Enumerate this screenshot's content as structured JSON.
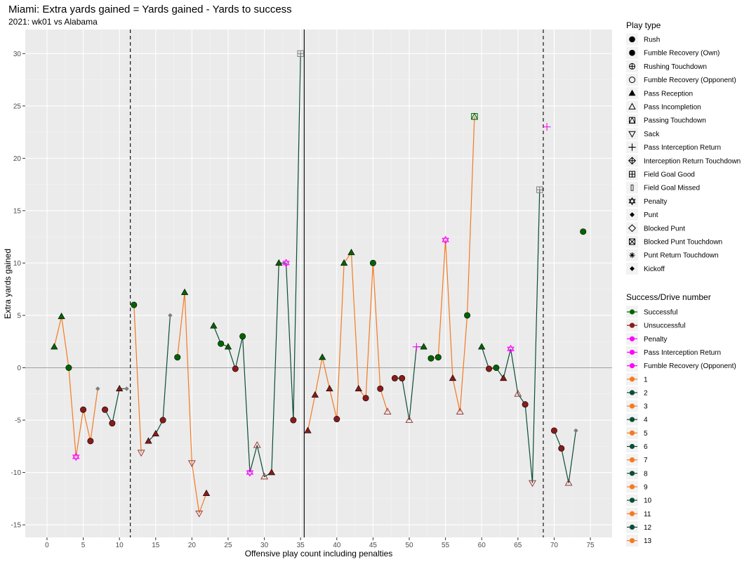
{
  "chart_data": {
    "type": "line",
    "title": "Miami: Extra yards gained = Yards gained - Yards to success",
    "subtitle": "2021: wk01 vs Alabama",
    "xlabel": "Offensive play count including penalties",
    "ylabel": "Extra yards gained",
    "xlim": [
      -3,
      78
    ],
    "ylim": [
      -16.2,
      32.3
    ],
    "xticks": [
      0,
      5,
      10,
      15,
      20,
      25,
      30,
      35,
      40,
      45,
      50,
      55,
      60,
      65,
      70,
      75
    ],
    "yticks": [
      -15,
      -10,
      -5,
      0,
      5,
      10,
      15,
      20,
      25,
      30
    ],
    "grid": true,
    "legend_position": "right",
    "vlines_dashed": [
      11.5,
      68.5
    ],
    "vlines_solid": [
      35.5
    ],
    "hline": 0,
    "colors": {
      "Successful": "#006400",
      "Unsuccessful": "#8b1a1a",
      "Penalty": "#ff00ff",
      "odd_drive": "#f47a20",
      "even_drive": "#0b4d36",
      "other": "#7f7f7f"
    },
    "legend_shapes": {
      "title": "Play type",
      "items": [
        {
          "label": "Rush",
          "shape": "circle"
        },
        {
          "label": "Fumble Recovery (Own)",
          "shape": "circle"
        },
        {
          "label": "Rushing Touchdown",
          "shape": "circle-plus"
        },
        {
          "label": "Fumble Recovery (Opponent)",
          "shape": "circle-open"
        },
        {
          "label": "Pass Reception",
          "shape": "triangle"
        },
        {
          "label": "Pass Incompletion",
          "shape": "triangle-open"
        },
        {
          "label": "Passing Touchdown",
          "shape": "square-triangle"
        },
        {
          "label": "Sack",
          "shape": "triangle-down-open"
        },
        {
          "label": "Pass Interception Return",
          "shape": "plus"
        },
        {
          "label": "Interception Return Touchdown",
          "shape": "diamond-plus"
        },
        {
          "label": "Field Goal Good",
          "shape": "square-plus"
        },
        {
          "label": "Field Goal Missed",
          "shape": "bar"
        },
        {
          "label": "Penalty",
          "shape": "star-david"
        },
        {
          "label": "Punt",
          "shape": "diamond"
        },
        {
          "label": "Blocked Punt",
          "shape": "diamond-open"
        },
        {
          "label": "Blocked Punt Touchdown",
          "shape": "square-x"
        },
        {
          "label": "Punt Return Touchdown",
          "shape": "asterisk"
        },
        {
          "label": "Kickoff",
          "shape": "diamond"
        }
      ]
    },
    "legend_colors": {
      "title": "Success/Drive number",
      "items": [
        {
          "label": "Successful",
          "color": "#006400"
        },
        {
          "label": "Unsuccessful",
          "color": "#8b1a1a"
        },
        {
          "label": "Penalty",
          "color": "#ff00ff"
        },
        {
          "label": "Pass Interception Return",
          "color": "#ff00ff"
        },
        {
          "label": "Fumble Recovery (Opponent)",
          "color": "#ff00ff"
        },
        {
          "label": "1",
          "color": "#f47a20"
        },
        {
          "label": "2",
          "color": "#0b4d36"
        },
        {
          "label": "3",
          "color": "#f47a20"
        },
        {
          "label": "4",
          "color": "#0b4d36"
        },
        {
          "label": "5",
          "color": "#f47a20"
        },
        {
          "label": "6",
          "color": "#0b4d36"
        },
        {
          "label": "7",
          "color": "#f47a20"
        },
        {
          "label": "8",
          "color": "#0b4d36"
        },
        {
          "label": "9",
          "color": "#f47a20"
        },
        {
          "label": "10",
          "color": "#0b4d36"
        },
        {
          "label": "11",
          "color": "#f47a20"
        },
        {
          "label": "12",
          "color": "#0b4d36"
        },
        {
          "label": "13",
          "color": "#f47a20"
        }
      ]
    },
    "drives": [
      {
        "drive": 1,
        "points": [
          {
            "x": 1,
            "y": 2,
            "shape": "triangle",
            "result": "Successful"
          },
          {
            "x": 2,
            "y": 4.9,
            "shape": "triangle",
            "result": "Successful"
          },
          {
            "x": 3,
            "y": 0,
            "shape": "circle",
            "result": "Successful"
          },
          {
            "x": 4,
            "y": -8.5,
            "shape": "star-david",
            "result": "Penalty"
          },
          {
            "x": 5,
            "y": -4,
            "shape": "circle",
            "result": "Unsuccessful"
          },
          {
            "x": 6,
            "y": -7,
            "shape": "circle",
            "result": "Unsuccessful"
          },
          {
            "x": 7,
            "y": -2,
            "shape": "diamond",
            "result": "Other"
          }
        ]
      },
      {
        "drive": 2,
        "points": [
          {
            "x": 8,
            "y": -4,
            "shape": "circle",
            "result": "Unsuccessful"
          },
          {
            "x": 9,
            "y": -5.3,
            "shape": "circle",
            "result": "Unsuccessful"
          },
          {
            "x": 10,
            "y": -2,
            "shape": "triangle",
            "result": "Unsuccessful"
          },
          {
            "x": 11,
            "y": -2,
            "shape": "diamond",
            "result": "Other"
          }
        ]
      },
      {
        "drive": 3,
        "points": [
          {
            "x": 12,
            "y": 6,
            "shape": "circle",
            "result": "Successful"
          },
          {
            "x": 13,
            "y": -8.1,
            "shape": "triangle-down-open",
            "result": "Unsuccessful"
          }
        ]
      },
      {
        "drive": 4,
        "points": [
          {
            "x": 14,
            "y": -7,
            "shape": "triangle",
            "result": "Unsuccessful"
          },
          {
            "x": 15,
            "y": -6.3,
            "shape": "triangle",
            "result": "Unsuccessful"
          },
          {
            "x": 16,
            "y": -5,
            "shape": "circle",
            "result": "Unsuccessful"
          },
          {
            "x": 17,
            "y": 5,
            "shape": "diamond",
            "result": "Other"
          }
        ]
      },
      {
        "drive": 5,
        "points": [
          {
            "x": 18,
            "y": 1,
            "shape": "circle",
            "result": "Successful"
          },
          {
            "x": 19,
            "y": 7.2,
            "shape": "triangle",
            "result": "Successful"
          },
          {
            "x": 20,
            "y": -9.1,
            "shape": "triangle-down-open",
            "result": "Unsuccessful"
          },
          {
            "x": 21,
            "y": -13.9,
            "shape": "triangle-down-open",
            "result": "Unsuccessful"
          },
          {
            "x": 22,
            "y": -12,
            "shape": "triangle",
            "result": "Unsuccessful"
          }
        ]
      },
      {
        "drive": 6,
        "points": [
          {
            "x": 23,
            "y": 4,
            "shape": "triangle",
            "result": "Successful"
          },
          {
            "x": 24,
            "y": 2.3,
            "shape": "circle",
            "result": "Successful"
          },
          {
            "x": 25,
            "y": 2,
            "shape": "triangle",
            "result": "Successful"
          },
          {
            "x": 26,
            "y": -0.1,
            "shape": "circle",
            "result": "Unsuccessful"
          },
          {
            "x": 27,
            "y": 3,
            "shape": "circle",
            "result": "Successful"
          },
          {
            "x": 28,
            "y": -10,
            "shape": "star-david",
            "result": "Penalty"
          },
          {
            "x": 29,
            "y": -7.4,
            "shape": "triangle-open",
            "result": "Unsuccessful"
          },
          {
            "x": 30,
            "y": -10.4,
            "shape": "triangle-open",
            "result": "Unsuccessful"
          },
          {
            "x": 31,
            "y": -10,
            "shape": "triangle",
            "result": "Unsuccessful"
          },
          {
            "x": 32,
            "y": 10,
            "shape": "triangle",
            "result": "Successful"
          },
          {
            "x": 33,
            "y": 10,
            "shape": "star-david",
            "result": "Penalty"
          },
          {
            "x": 34,
            "y": -5,
            "shape": "circle",
            "result": "Unsuccessful"
          },
          {
            "x": 35,
            "y": 30,
            "shape": "square-plus",
            "result": "Other"
          }
        ]
      },
      {
        "drive": 7,
        "points": [
          {
            "x": 36,
            "y": -6,
            "shape": "triangle",
            "result": "Unsuccessful"
          },
          {
            "x": 37,
            "y": -2.6,
            "shape": "triangle",
            "result": "Unsuccessful"
          },
          {
            "x": 38,
            "y": 1,
            "shape": "triangle",
            "result": "Successful"
          },
          {
            "x": 39,
            "y": -2,
            "shape": "triangle",
            "result": "Unsuccessful"
          },
          {
            "x": 40,
            "y": -4.9,
            "shape": "circle",
            "result": "Unsuccessful"
          },
          {
            "x": 41,
            "y": 10,
            "shape": "triangle",
            "result": "Successful"
          },
          {
            "x": 42,
            "y": 11,
            "shape": "triangle",
            "result": "Successful"
          },
          {
            "x": 43,
            "y": -2,
            "shape": "triangle",
            "result": "Unsuccessful"
          },
          {
            "x": 44,
            "y": -2.9,
            "shape": "circle",
            "result": "Unsuccessful"
          },
          {
            "x": 45,
            "y": 10,
            "shape": "circle",
            "result": "Successful"
          },
          {
            "x": 46,
            "y": -2,
            "shape": "circle",
            "result": "Unsuccessful"
          },
          {
            "x": 47,
            "y": -4.2,
            "shape": "triangle-open",
            "result": "Unsuccessful"
          }
        ]
      },
      {
        "drive": 8,
        "points": [
          {
            "x": 48,
            "y": -1,
            "shape": "circle",
            "result": "Unsuccessful"
          },
          {
            "x": 49,
            "y": -1,
            "shape": "circle",
            "result": "Unsuccessful"
          },
          {
            "x": 50,
            "y": -5,
            "shape": "triangle-open",
            "result": "Unsuccessful"
          },
          {
            "x": 51,
            "y": 2,
            "shape": "plus",
            "result": "Penalty"
          },
          {
            "x": 52,
            "y": 2,
            "shape": "triangle",
            "result": "Successful"
          }
        ]
      },
      {
        "drive": 9,
        "points": [
          {
            "x": 53,
            "y": 0.9,
            "shape": "circle",
            "result": "Successful"
          },
          {
            "x": 54,
            "y": 1,
            "shape": "circle",
            "result": "Successful"
          },
          {
            "x": 55,
            "y": 12.2,
            "shape": "star-david",
            "result": "Penalty"
          },
          {
            "x": 56,
            "y": -1,
            "shape": "triangle",
            "result": "Unsuccessful"
          },
          {
            "x": 57,
            "y": -4.2,
            "shape": "triangle-open",
            "result": "Unsuccessful"
          },
          {
            "x": 58,
            "y": 5,
            "shape": "circle",
            "result": "Successful"
          },
          {
            "x": 59,
            "y": 24,
            "shape": "square-triangle",
            "result": "Successful"
          }
        ]
      },
      {
        "drive": 10,
        "points": [
          {
            "x": 60,
            "y": 2,
            "shape": "triangle",
            "result": "Successful"
          },
          {
            "x": 61,
            "y": -0.1,
            "shape": "circle",
            "result": "Unsuccessful"
          },
          {
            "x": 62,
            "y": 0,
            "shape": "circle",
            "result": "Successful"
          },
          {
            "x": 63,
            "y": -1,
            "shape": "triangle",
            "result": "Unsuccessful"
          },
          {
            "x": 64,
            "y": 1.8,
            "shape": "star-david",
            "result": "Penalty"
          },
          {
            "x": 65,
            "y": -2.5,
            "shape": "triangle-open",
            "result": "Unsuccessful"
          },
          {
            "x": 66,
            "y": -3.5,
            "shape": "circle",
            "result": "Unsuccessful"
          },
          {
            "x": 67,
            "y": -11,
            "shape": "triangle-down-open",
            "result": "Unsuccessful"
          },
          {
            "x": 68,
            "y": 17,
            "shape": "square-plus",
            "result": "Other"
          }
        ]
      },
      {
        "drive": 11,
        "points": [
          {
            "x": 69,
            "y": 23,
            "shape": "plus",
            "result": "Penalty"
          }
        ]
      },
      {
        "drive": 12,
        "points": [
          {
            "x": 70,
            "y": -6,
            "shape": "circle",
            "result": "Unsuccessful"
          },
          {
            "x": 71,
            "y": -7.7,
            "shape": "circle",
            "result": "Unsuccessful"
          },
          {
            "x": 72,
            "y": -11,
            "shape": "triangle-open",
            "result": "Unsuccessful"
          },
          {
            "x": 73,
            "y": -6,
            "shape": "diamond",
            "result": "Other"
          }
        ]
      },
      {
        "drive": 13,
        "points": [
          {
            "x": 74,
            "y": 13,
            "shape": "circle",
            "result": "Successful"
          }
        ]
      }
    ]
  }
}
